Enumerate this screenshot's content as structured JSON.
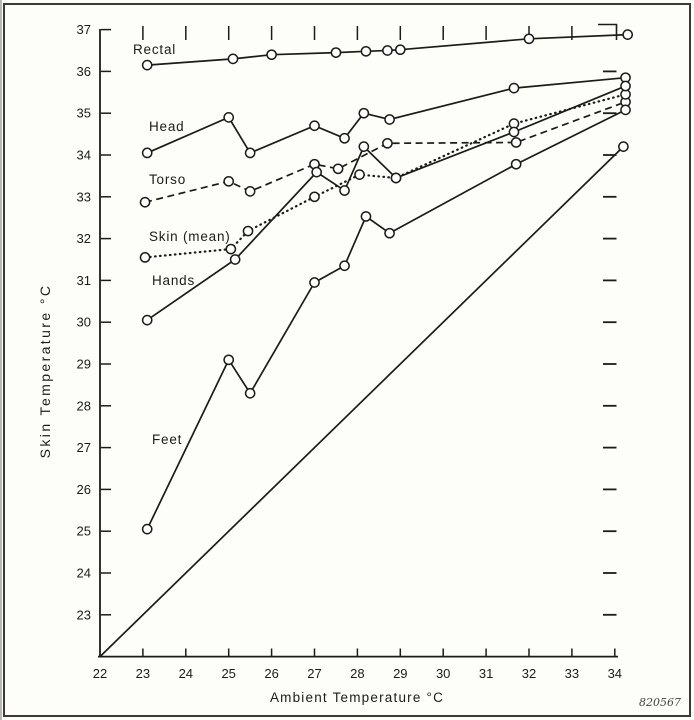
{
  "figure": {
    "code_label": "820567",
    "line_color": "#1b1b18",
    "background": "#fdfdfa"
  },
  "chart_data": {
    "type": "line",
    "title": "",
    "xlabel": "Ambient Temperature °C",
    "ylabel": "Skin Temperature °C",
    "xlim": [
      22,
      34.5
    ],
    "ylim": [
      22,
      37
    ],
    "x_ticks": [
      22,
      23,
      24,
      25,
      26,
      27,
      28,
      29,
      30,
      31,
      32,
      33,
      34
    ],
    "y_ticks": [
      23,
      24,
      25,
      26,
      27,
      28,
      29,
      30,
      31,
      32,
      33,
      34,
      35,
      36,
      37
    ],
    "top_ticks": [
      23,
      24,
      25,
      26,
      27,
      28,
      29,
      30,
      31,
      32,
      33
    ],
    "right_ticks": [
      23,
      24,
      25,
      26,
      27,
      28,
      29,
      30,
      31,
      32,
      33,
      34,
      35,
      36
    ],
    "grid": false,
    "legend_position": "inline-labels",
    "series": [
      {
        "name": "Rectal",
        "line_style": "solid",
        "marker": "circle",
        "points": [
          [
            23.1,
            36.15
          ],
          [
            25.1,
            36.3
          ],
          [
            26.0,
            36.4
          ],
          [
            27.5,
            36.45
          ],
          [
            28.2,
            36.48
          ],
          [
            28.7,
            36.5
          ],
          [
            29.0,
            36.52
          ],
          [
            32.0,
            36.78
          ],
          [
            34.3,
            36.88
          ]
        ]
      },
      {
        "name": "Head",
        "line_style": "solid",
        "marker": "circle",
        "points": [
          [
            23.1,
            34.05
          ],
          [
            25.0,
            34.9
          ],
          [
            25.5,
            34.05
          ],
          [
            27.0,
            34.7
          ],
          [
            27.7,
            34.4
          ],
          [
            28.15,
            35.0
          ],
          [
            28.75,
            34.85
          ],
          [
            31.65,
            35.6
          ],
          [
            34.25,
            35.85
          ]
        ]
      },
      {
        "name": "Torso",
        "line_style": "dashed",
        "marker": "circle",
        "points": [
          [
            23.05,
            32.87
          ],
          [
            25.0,
            33.37
          ],
          [
            25.5,
            33.13
          ],
          [
            27.0,
            33.78
          ],
          [
            27.55,
            33.67
          ],
          [
            28.7,
            34.28
          ],
          [
            31.7,
            34.3
          ],
          [
            34.25,
            35.27
          ]
        ]
      },
      {
        "name": "Skin (mean)",
        "line_style": "dotted",
        "marker": "circle",
        "points": [
          [
            23.05,
            31.55
          ],
          [
            25.05,
            31.75
          ],
          [
            25.45,
            32.18
          ],
          [
            27.0,
            33.0
          ],
          [
            28.05,
            33.53
          ],
          [
            28.9,
            33.45
          ],
          [
            31.65,
            34.75
          ],
          [
            34.25,
            35.45
          ]
        ]
      },
      {
        "name": "Hands",
        "line_style": "solid",
        "marker": "circle",
        "points": [
          [
            23.1,
            30.05
          ],
          [
            25.15,
            31.5
          ],
          [
            27.05,
            33.59
          ],
          [
            27.7,
            33.15
          ],
          [
            28.15,
            34.2
          ],
          [
            28.9,
            33.45
          ],
          [
            31.65,
            34.55
          ],
          [
            34.25,
            35.65
          ]
        ]
      },
      {
        "name": "Feet",
        "line_style": "solid",
        "marker": "circle",
        "points": [
          [
            23.1,
            25.05
          ],
          [
            25.0,
            29.1
          ],
          [
            25.5,
            28.3
          ],
          [
            27.0,
            30.95
          ],
          [
            27.7,
            31.35
          ],
          [
            28.2,
            32.53
          ],
          [
            28.75,
            32.13
          ],
          [
            31.7,
            33.78
          ],
          [
            34.25,
            35.08
          ]
        ]
      }
    ],
    "reference_line": {
      "name": "ambient-equals-skin-line",
      "line_style": "solid",
      "points": [
        [
          22,
          22
        ],
        [
          34.2,
          34.2
        ]
      ],
      "end_marker": "circle"
    }
  }
}
